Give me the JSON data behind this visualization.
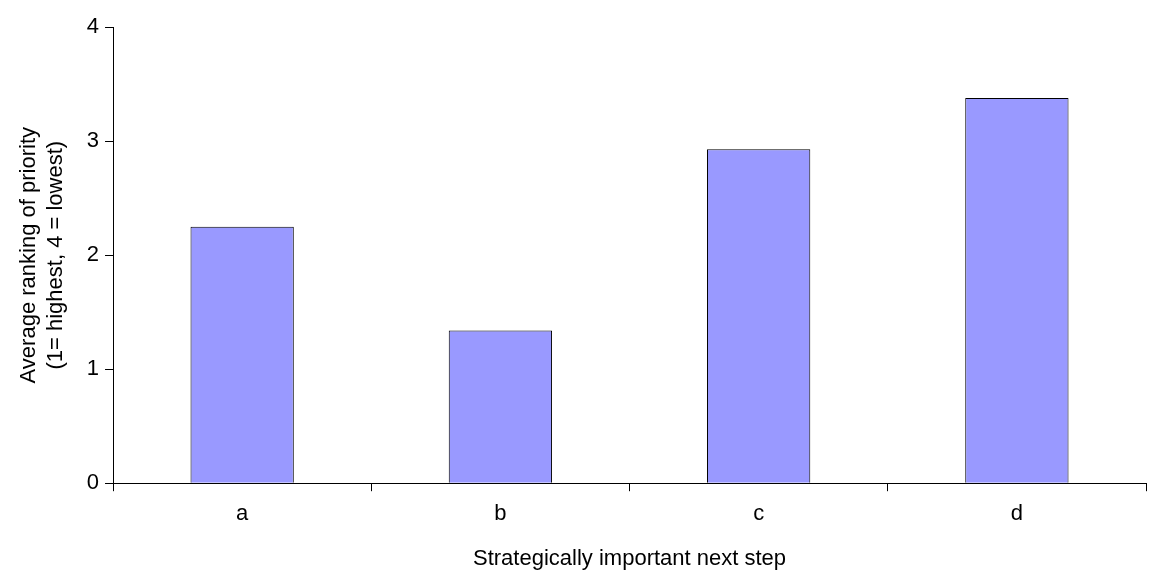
{
  "chart_data": {
    "type": "bar",
    "xlabel": "Strategically important next step",
    "ylabel": "Average ranking of priority\n(1= highest, 4 = lowest)",
    "categories": [
      "a",
      "b",
      "c",
      "d"
    ],
    "values": [
      2.25,
      1.34,
      2.93,
      3.38
    ],
    "color": "#9999ff",
    "ylim": [
      0,
      4
    ],
    "yticks": [
      0,
      1,
      2,
      3,
      4
    ],
    "grid": false,
    "legend": false
  }
}
